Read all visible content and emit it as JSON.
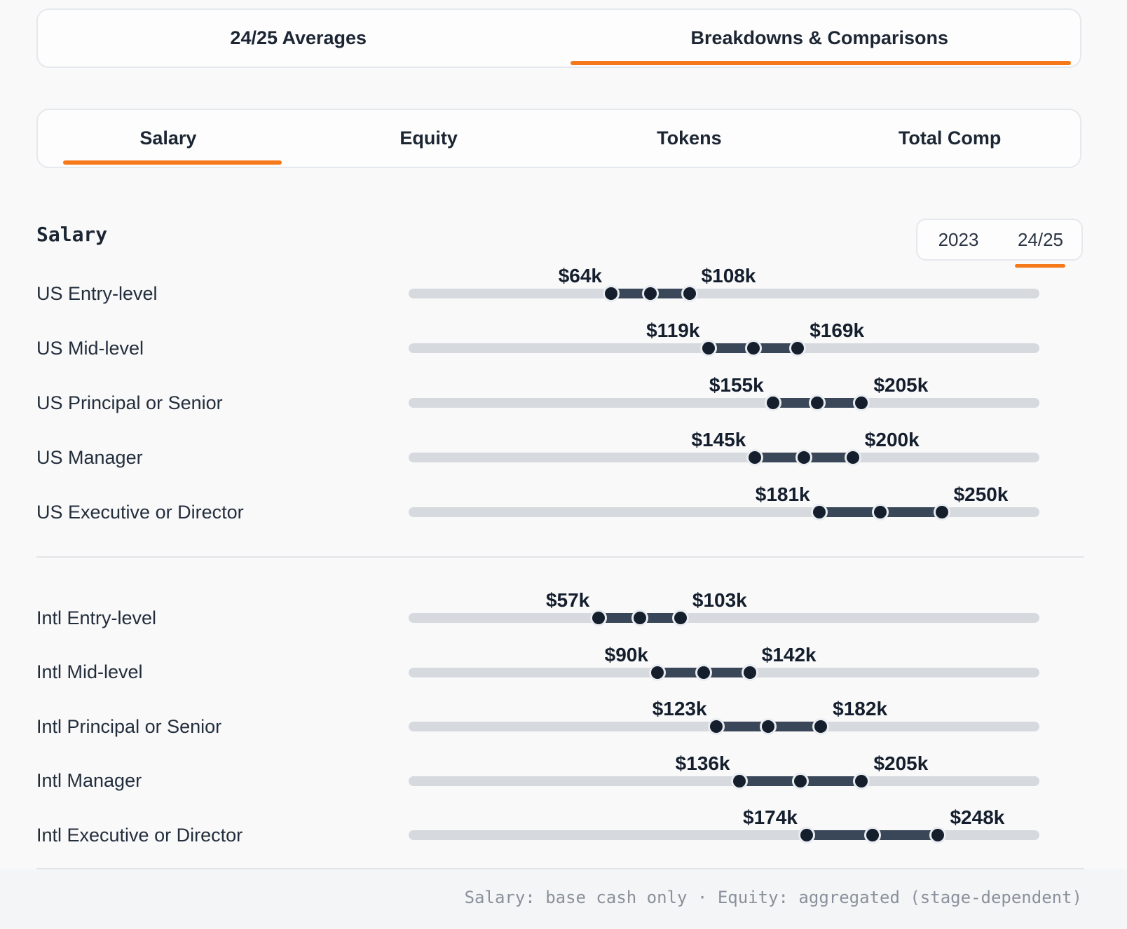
{
  "primary_tabs": {
    "items": [
      {
        "label": "24/25 Averages",
        "active": false
      },
      {
        "label": "Breakdowns & Comparisons",
        "active": true
      }
    ]
  },
  "metric_tabs": {
    "items": [
      {
        "label": "Salary",
        "active": true
      },
      {
        "label": "Equity",
        "active": false
      },
      {
        "label": "Tokens",
        "active": false
      },
      {
        "label": "Total Comp",
        "active": false
      }
    ]
  },
  "section": {
    "title": "Salary",
    "year_toggle": {
      "options": [
        {
          "label": "2023",
          "active": false
        },
        {
          "label": "24/25",
          "active": true
        }
      ]
    }
  },
  "accent_color": "#f5791a",
  "groups": [
    {
      "name": "US",
      "rows": [
        {
          "label": "US Entry-level",
          "min": 64,
          "max": 108,
          "min_label": "$64k",
          "max_label": "$108k"
        },
        {
          "label": "US Mid-level",
          "min": 119,
          "max": 169,
          "min_label": "$119k",
          "max_label": "$169k"
        },
        {
          "label": "US Principal or Senior",
          "min": 155,
          "max": 205,
          "min_label": "$155k",
          "max_label": "$205k"
        },
        {
          "label": "US Manager",
          "min": 145,
          "max": 200,
          "min_label": "$145k",
          "max_label": "$200k"
        },
        {
          "label": "US Executive or Director",
          "min": 181,
          "max": 250,
          "min_label": "$181k",
          "max_label": "$250k"
        }
      ]
    },
    {
      "name": "Intl",
      "rows": [
        {
          "label": "Intl Entry-level",
          "min": 57,
          "max": 103,
          "min_label": "$57k",
          "max_label": "$103k"
        },
        {
          "label": "Intl Mid-level",
          "min": 90,
          "max": 142,
          "min_label": "$90k",
          "max_label": "$142k"
        },
        {
          "label": "Intl Principal or Senior",
          "min": 123,
          "max": 182,
          "min_label": "$123k",
          "max_label": "$182k"
        },
        {
          "label": "Intl Manager",
          "min": 136,
          "max": 205,
          "min_label": "$136k",
          "max_label": "$205k"
        },
        {
          "label": "Intl Executive or Director",
          "min": 174,
          "max": 248,
          "min_label": "$174k",
          "max_label": "$248k"
        }
      ]
    }
  ],
  "footer": {
    "note": "Salary: base cash only · Equity: aggregated (stage-dependent)"
  }
}
